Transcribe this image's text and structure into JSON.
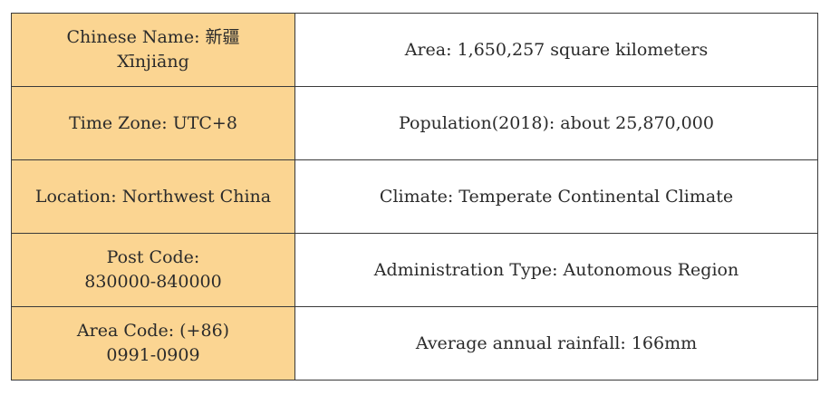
{
  "table": {
    "rows": [
      {
        "left": [
          "Chinese Name: 新疆",
          "Xīnjiāng"
        ],
        "right": "Area: 1,650,257 square kilometers"
      },
      {
        "left": [
          "Time Zone: UTC+8"
        ],
        "right": "Population(2018): about 25,870,000"
      },
      {
        "left": [
          "Location: Northwest China"
        ],
        "right": "Climate: Temperate Continental Climate"
      },
      {
        "left": [
          "Post Code:",
          "830000-840000"
        ],
        "right": "Administration Type: Autonomous Region"
      },
      {
        "left": [
          "Area Code: (+86)",
          "0991-0909"
        ],
        "right": "Average annual rainfall: 166mm"
      }
    ],
    "colors": {
      "key_cell_bg": "#fbd592",
      "border": "#3a3a3a",
      "text": "#2b2b2b"
    }
  }
}
